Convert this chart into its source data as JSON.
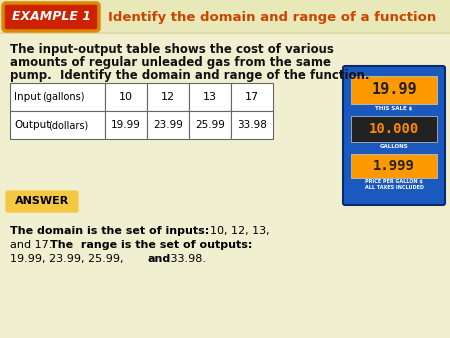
{
  "bg_color": "#f0f0d0",
  "header_bg": "#cc2200",
  "header_border": "#dd8800",
  "header_text": "EXAMPLE 1",
  "header_color": "#ffffff",
  "title_text": "Identify the domain and range of a function",
  "title_color": "#cc4400",
  "header_line_color": "#ddddaa",
  "body_text_line1": "The input-output table shows the cost of various",
  "body_text_line2": "amounts of regular unleaded gas from the same",
  "body_text_line3": "pump.  Identify the domain and range of the function.",
  "body_color": "#111111",
  "table_input_label": "Input",
  "table_input_paren": "(gallons)",
  "table_output_label": "Output",
  "table_output_paren": "(dollars)",
  "table_inputs": [
    "10",
    "12",
    "13",
    "17"
  ],
  "table_outputs": [
    "19.99",
    "23.99",
    "25.99",
    "33.98"
  ],
  "answer_bg": "#f5c842",
  "answer_text": "ANSWER",
  "pump_outer": "#1a5abf",
  "pump_display1_bg": "#ff9900",
  "pump_display1_text": "19.99",
  "pump_label1": "THIS SALE $",
  "pump_display2_bg": "#222222",
  "pump_display2_text": "10.000",
  "pump_label2": "GALLONS",
  "pump_display3_bg": "#ff9900",
  "pump_display3_text": "1.999",
  "pump_label3": "PRICE PER GALLON $",
  "pump_label3b": "ALL TAXES INCLUDED"
}
